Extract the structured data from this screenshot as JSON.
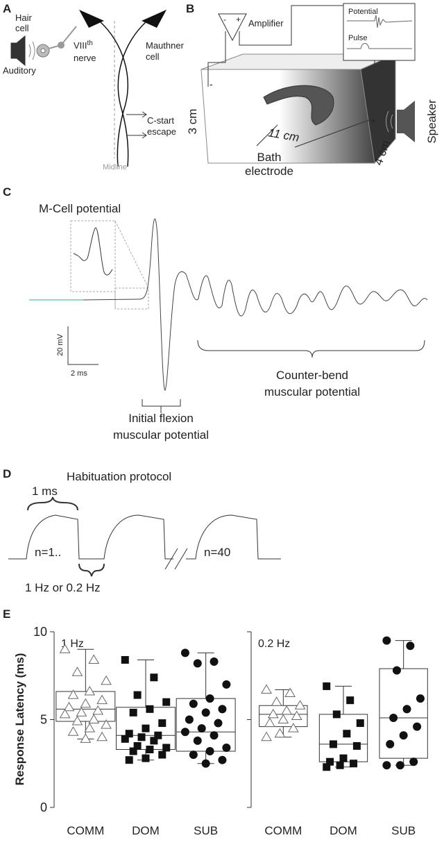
{
  "panels": {
    "a": {
      "letter": "A",
      "hair_cell": [
        "Hair",
        "cell"
      ],
      "nerve_numeral": "VIII",
      "nerve_sup": "th",
      "nerve": "nerve",
      "auditory": "Auditory",
      "mauthner": [
        "Mauthner",
        "cell"
      ],
      "escape": [
        "C-start",
        "escape"
      ],
      "midline": "Midline"
    },
    "b": {
      "letter": "B",
      "amplifier": "Amplifier",
      "minus": "-",
      "plus": "+",
      "potential": "Potential",
      "pulse": "Pulse",
      "height": "3 cm",
      "length": "11 cm",
      "depth": "4 cm",
      "speaker": "Speaker",
      "electrode": [
        "Bath",
        "electrode"
      ],
      "electrode_minus": "-",
      "electrode_plus": "+"
    },
    "c": {
      "letter": "C",
      "inset": "M-Cell potential",
      "scale_v": "20 mV",
      "scale_t": "2 ms",
      "flexion": [
        "Initial flexion",
        "muscular potential"
      ],
      "counter": [
        "Counter-bend",
        "muscular potential"
      ]
    },
    "d": {
      "letter": "D",
      "title": "Habituation protocol",
      "duration": "1 ms",
      "first": "n=1..",
      "last": "n=40",
      "rate": "1 Hz or 0.2 Hz"
    }
  },
  "chart_data": {
    "type": "box",
    "letter": "E",
    "ylabel": "Response Latency (ms)",
    "ylim": [
      0,
      10
    ],
    "yticks": [
      0,
      5,
      10
    ],
    "groups": [
      {
        "label": "1 Hz",
        "categories": [
          "COMM",
          "DOM",
          "SUB"
        ],
        "boxes": [
          {
            "marker": "triangle",
            "min": 3.9,
            "q1": 4.9,
            "median": 5.6,
            "q3": 6.6,
            "max": 9.0,
            "points": [
              9.0,
              8.4,
              7.7,
              7.2,
              6.6,
              6.4,
              6.1,
              5.9,
              5.7,
              5.5,
              5.4,
              5.3,
              5.0,
              4.9,
              4.7,
              4.5,
              4.3,
              4.0,
              3.9
            ]
          },
          {
            "marker": "square",
            "min": 2.7,
            "q1": 3.3,
            "median": 4.1,
            "q3": 5.7,
            "max": 8.4,
            "points": [
              8.4,
              7.4,
              6.4,
              6.0,
              5.6,
              5.4,
              4.8,
              4.5,
              4.2,
              4.1,
              4.0,
              3.9,
              3.8,
              3.5,
              3.4,
              3.3,
              3.2,
              3.0,
              2.8,
              2.7
            ]
          },
          {
            "marker": "circle",
            "min": 2.5,
            "q1": 3.2,
            "median": 4.3,
            "q3": 6.2,
            "max": 8.8,
            "points": [
              8.8,
              8.3,
              8.2,
              7.0,
              6.2,
              5.9,
              5.6,
              5.4,
              5.0,
              4.8,
              4.5,
              4.3,
              4.1,
              3.8,
              3.4,
              3.2,
              3.0,
              2.7,
              2.5
            ]
          }
        ]
      },
      {
        "label": "0.2 Hz",
        "categories": [
          "COMM",
          "DOM",
          "SUB"
        ],
        "boxes": [
          {
            "marker": "triangle",
            "min": 4.0,
            "q1": 4.6,
            "median": 5.3,
            "q3": 5.8,
            "max": 6.7,
            "points": [
              6.7,
              6.5,
              6.0,
              5.8,
              5.5,
              5.3,
              5.2,
              5.0,
              4.8,
              4.5,
              4.2,
              4.0
            ]
          },
          {
            "marker": "square",
            "min": 2.3,
            "q1": 2.6,
            "median": 3.6,
            "q3": 5.3,
            "max": 6.9,
            "points": [
              6.9,
              6.1,
              5.3,
              4.8,
              4.2,
              3.6,
              3.5,
              2.8,
              2.6,
              2.5,
              2.4,
              2.3
            ]
          },
          {
            "marker": "circle",
            "min": 2.4,
            "q1": 2.8,
            "median": 5.1,
            "q3": 7.9,
            "max": 9.5,
            "points": [
              9.5,
              9.2,
              7.8,
              6.2,
              5.6,
              5.1,
              4.6,
              4.1,
              3.6,
              2.6,
              2.4,
              2.4
            ]
          }
        ]
      }
    ]
  }
}
